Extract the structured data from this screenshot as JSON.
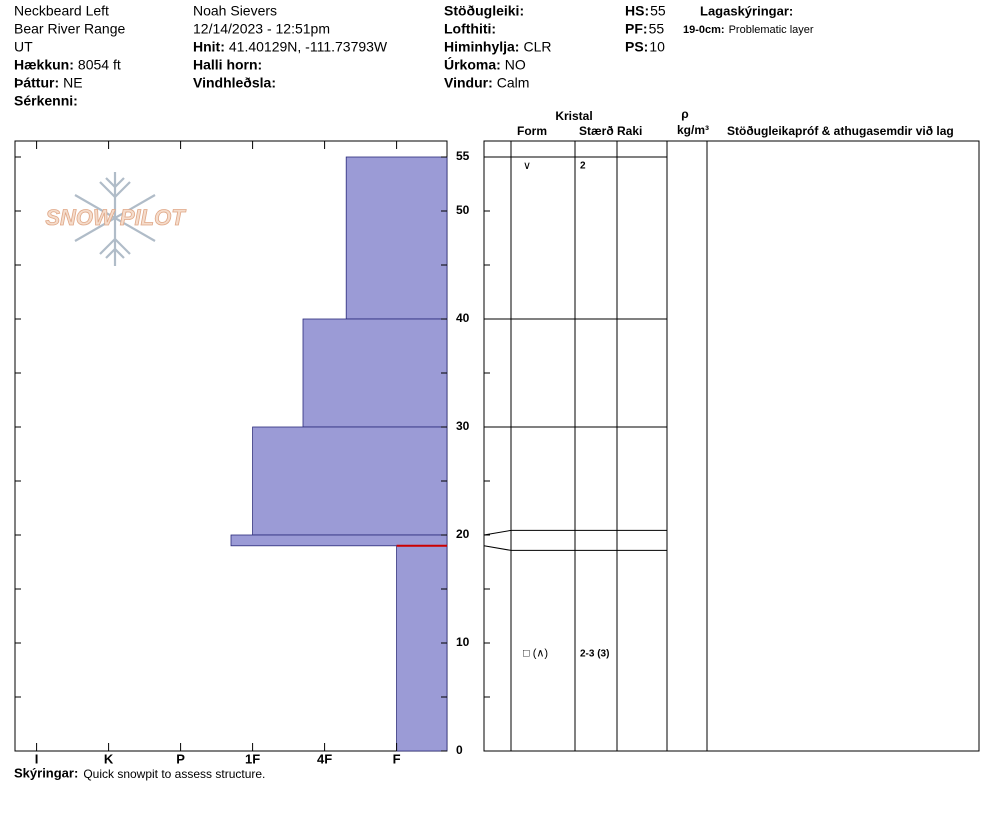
{
  "header": {
    "columns": [
      [
        {
          "value": "Neckbeard Left"
        },
        {
          "value": "Bear River Range"
        },
        {
          "value": "UT"
        },
        {
          "label": "Hækkun:",
          "value": "8054 ft"
        },
        {
          "label": "Þáttur:",
          "value": "NE"
        },
        {
          "label": "Sérkenni:"
        }
      ],
      [
        {
          "value": "Noah Sievers"
        },
        {
          "value": "12/14/2023 - 12:51pm"
        },
        {
          "label": "Hnit:",
          "value": "41.40129N, -111.73793W"
        },
        {
          "label": "Halli horn:"
        },
        {
          "label": "Vindhleðsla:"
        }
      ],
      [
        {
          "label": "Stöðugleiki:"
        },
        {
          "label": "Lofthiti:"
        },
        {
          "label": "Himinhylja:",
          "value": "CLR"
        },
        {
          "label": "Úrkoma:",
          "value": "NO"
        },
        {
          "label": "Vindur:",
          "value": "Calm"
        }
      ],
      [
        {
          "label": "HS:",
          "value": "55"
        },
        {
          "label": "PF:",
          "value": "55"
        },
        {
          "label": "PS:",
          "value": "10"
        }
      ],
      [
        {
          "label": "Lagaskýringar:"
        },
        {
          "label": "19-0cm:",
          "value": "Problematic layer"
        }
      ]
    ]
  },
  "logo": "SNOW PILOT",
  "chart_data": {
    "type": "snow-profile",
    "ylim": [
      0,
      55
    ],
    "yticks": [
      0,
      10,
      20,
      30,
      40,
      50,
      55
    ],
    "yminor_ticks": [
      5,
      15,
      25,
      35,
      45
    ],
    "xlim": [
      6.3,
      0.3
    ],
    "xticks": [
      {
        "value": 6,
        "label": "I"
      },
      {
        "value": 5,
        "label": "K"
      },
      {
        "value": 4,
        "label": "P"
      },
      {
        "value": 3,
        "label": "1F"
      },
      {
        "value": 2,
        "label": "4F"
      },
      {
        "value": 1,
        "label": "F"
      }
    ],
    "color": "#9b9bd6",
    "problem_depth": 19,
    "problem_color": "#cc0000",
    "layers": [
      {
        "top": 55,
        "bottom": 40,
        "hardness": 1.7,
        "form": "∨",
        "size": "2"
      },
      {
        "top": 40,
        "bottom": 30,
        "hardness": 2.3
      },
      {
        "top": 30,
        "bottom": 20,
        "hardness": 3.0
      },
      {
        "top": 20,
        "bottom": 19,
        "hardness": 3.3
      },
      {
        "top": 19,
        "bottom": 0,
        "hardness": 1.0,
        "form": "□ (∧)",
        "size": "2-3 (3)"
      }
    ]
  },
  "table": {
    "group": "Kristal",
    "columns": [
      "Form",
      "Stærð",
      "Raki",
      "ρ",
      "kg/m³",
      "Stöðugleikapróf & athugasemdir við lag"
    ]
  },
  "footer": {
    "label": "Skýringar:",
    "value": "Quick snowpit to assess structure."
  }
}
